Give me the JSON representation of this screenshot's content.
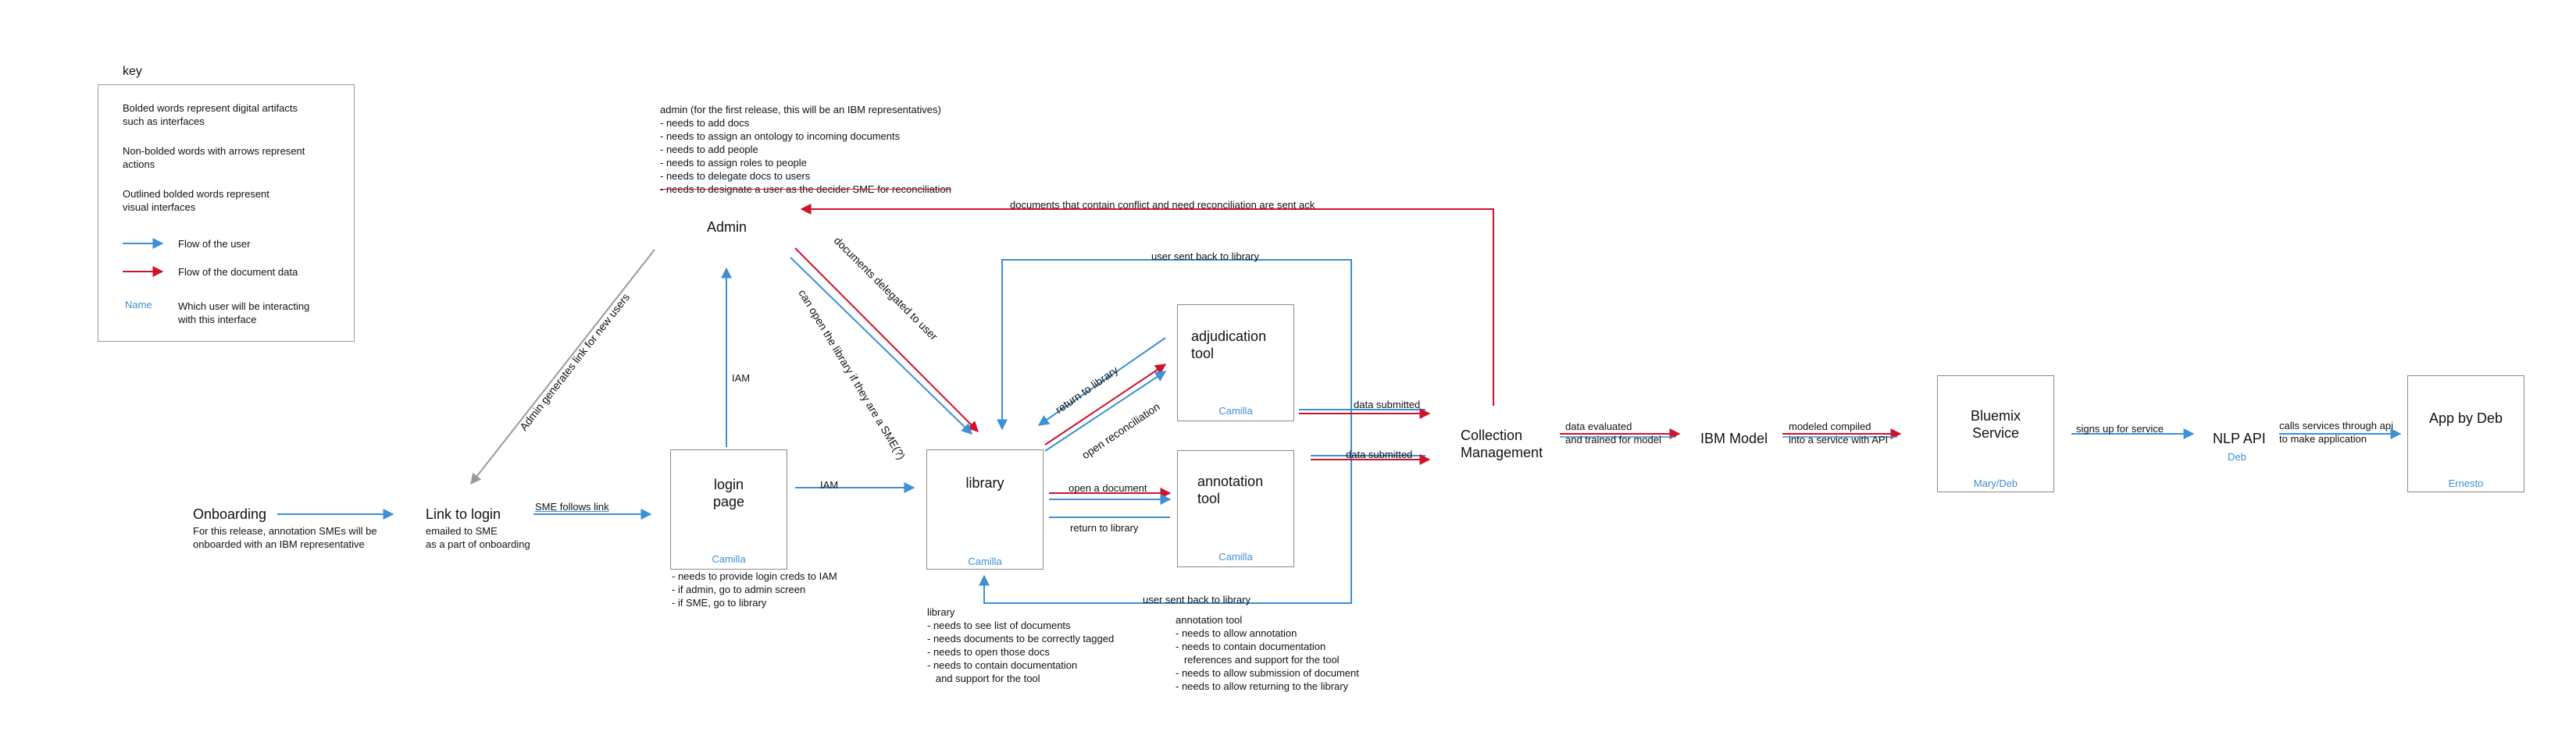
{
  "key": {
    "title": "key",
    "items": [
      "Bolded words represent digital artifacts such as interfaces",
      "Non-bolded words with arrows represent actions",
      "Outlined bolded words represent visual interfaces"
    ],
    "item_lines": [
      [
        "Bolded words represent digital artifacts",
        "such as interfaces"
      ],
      [
        "Non-bolded words with arrows represent",
        "actions"
      ],
      [
        "Outlined bolded words represent",
        "visual interfaces"
      ]
    ],
    "user_flow": "Flow of the user",
    "doc_flow": "Flow of the document data",
    "name_sample": "Name",
    "name_desc_lines": [
      "Which user will be interacting",
      "with this interface"
    ],
    "colors": {
      "user_flow": "#3d8fd6",
      "doc_flow": "#d0122c"
    }
  },
  "admin": {
    "notes_title": "admin (for the first release, this will be an IBM representatives)",
    "notes": [
      "- needs to add docs",
      "- needs to assign an ontology to incoming documents",
      "- needs to add people",
      "- needs to assign roles to people",
      "- needs to delegate docs to users",
      "- needs to designate a user as the decider SME for reconciliation"
    ],
    "label": "Admin"
  },
  "onboarding": {
    "label": "Onboarding",
    "note_lines": [
      "For this release, annotation SMEs will be",
      "onboarded with an IBM representative"
    ]
  },
  "link_to_login": {
    "label": "Link to login",
    "note_lines": [
      "emailed to SME",
      "as a part of onboarding"
    ]
  },
  "login_page": {
    "label_lines": [
      "login",
      "page"
    ],
    "user": "Camilla",
    "notes": [
      "- needs to provide login creds to IAM",
      "- if admin, go to admin screen",
      "- if SME, go to library"
    ]
  },
  "library": {
    "label": "library",
    "user": "Camilla",
    "notes_title": "library",
    "notes": [
      "- needs to see list of documents",
      "- needs documents to be correctly tagged",
      "- needs to open those docs",
      "- needs to contain documentation",
      "   and support for the tool"
    ]
  },
  "adjudication_tool": {
    "label_lines": [
      "adjudication",
      "tool"
    ],
    "user": "Camilla"
  },
  "annotation_tool": {
    "label_lines": [
      "annotation",
      "tool"
    ],
    "user": "Camilla",
    "notes_title": "annotation tool",
    "notes": [
      "- needs to allow annotation",
      "- needs to contain documentation",
      "   references and support for the tool",
      "- needs to allow submission of document",
      "- needs to allow returning to the library"
    ]
  },
  "collection_management": {
    "label_lines": [
      "Collection",
      "Management"
    ]
  },
  "ibm_model": {
    "label": "IBM Model"
  },
  "bluemix_service": {
    "label_lines": [
      "Bluemix",
      "Service"
    ],
    "user": "Mary/Deb"
  },
  "nlp_api": {
    "label": "NLP API",
    "user": "Deb"
  },
  "app_by_deb": {
    "label": "App by Deb",
    "user": "Ernesto"
  },
  "edges": {
    "admin_link": "Admin generates link for new users",
    "sme_follows": "SME follows link",
    "iam_up": "IAM",
    "iam_right": "IAM",
    "docs_delegated": "documents delegated to user",
    "can_open_library": "can open the library if they are a SME(?)",
    "return_to_library_diag": "return to library",
    "open_reconciliation": "open reconciliation",
    "open_document": "open a document",
    "return_to_library": "return to library",
    "user_sent_back_top": "user sent back to library",
    "user_sent_back_bottom": "user sent back to library",
    "data_submitted_1": "data submitted",
    "data_submitted_2": "data submitted",
    "conflict_ack": "documents that contain conflict and need reconciliation are sent ack",
    "data_evaluated_lines": [
      "data evaluated",
      "and trained for model"
    ],
    "modeled_compiled_lines": [
      "modeled compiled",
      "into a service with API"
    ],
    "signs_up": "signs up for service",
    "calls_services_lines": [
      "calls services through api",
      "to make application"
    ]
  }
}
